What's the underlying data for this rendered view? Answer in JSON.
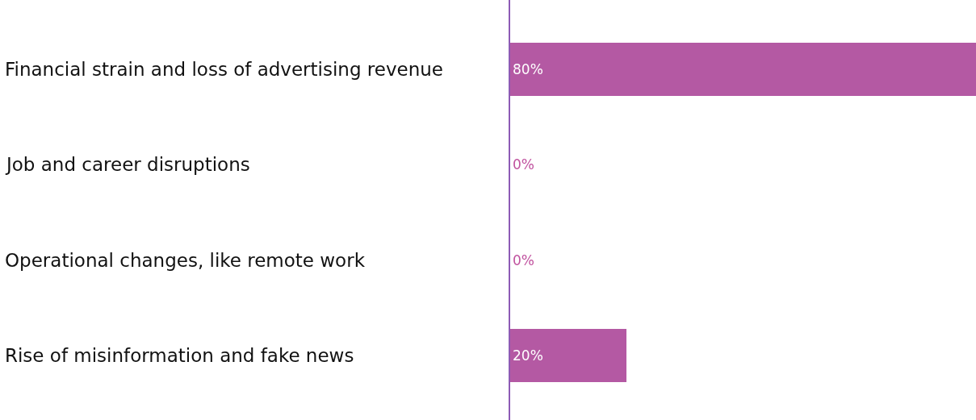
{
  "chart_data": {
    "type": "bar",
    "orientation": "horizontal",
    "categories": [
      "Financial strain and loss of advertising revenue",
      "Job and career disruptions",
      "Operational changes, like remote work",
      "Rise of misinformation and fake news"
    ],
    "values": [
      80,
      0,
      0,
      20
    ],
    "value_labels": [
      "80%",
      "0%",
      "0%",
      "20%"
    ],
    "color": "#b459a3",
    "xlim": [
      0,
      80
    ]
  }
}
